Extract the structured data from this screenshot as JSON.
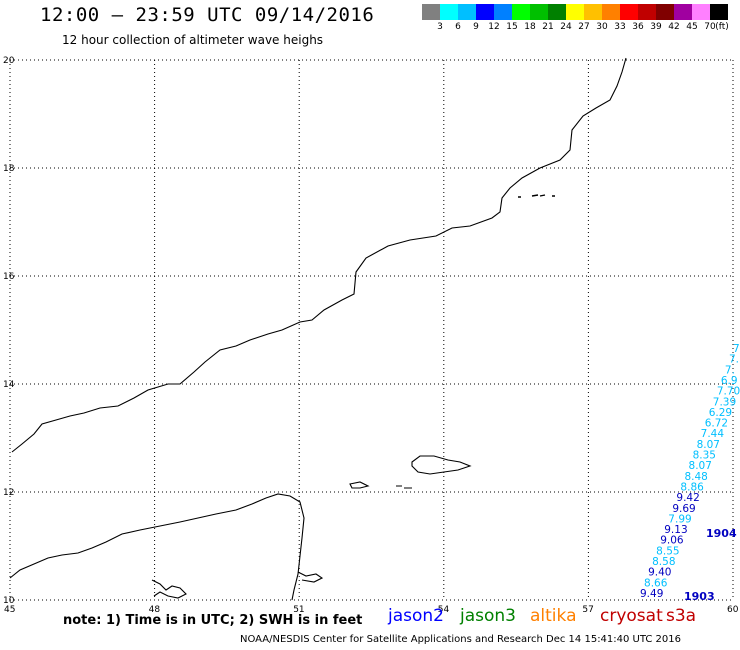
{
  "header": {
    "title": "12:00 – 23:59 UTC 09/14/2016",
    "subtitle": "12 hour collection of altimeter wave heighs"
  },
  "color_scale": {
    "colors": [
      "#808080",
      "#00ffff",
      "#00bfff",
      "#0000ff",
      "#0080ff",
      "#00ff00",
      "#00c000",
      "#008000",
      "#ffff00",
      "#ffc000",
      "#ff8000",
      "#ff0000",
      "#c00000",
      "#800000",
      "#a000a0",
      "#ff80ff",
      "#000000"
    ],
    "labels": [
      "3",
      "6",
      "9",
      "12",
      "15",
      "18",
      "21",
      "24",
      "27",
      "30",
      "33",
      "36",
      "39",
      "42",
      "45",
      "70",
      "(ft)"
    ]
  },
  "map": {
    "lon_range": [
      45,
      60
    ],
    "lat_range": [
      10,
      20
    ],
    "x_ticks": [
      "45",
      "48",
      "51",
      "54",
      "57",
      "60"
    ],
    "y_ticks": [
      "10",
      "12",
      "14",
      "16",
      "18",
      "20"
    ],
    "track_values": [
      "7",
      "7.",
      "7.",
      "6.9",
      "7.70",
      "7.39",
      "6.29",
      "6.72",
      "7.44",
      "8.07",
      "8.35",
      "8.07",
      "8.48",
      "8.86",
      "9.42",
      "9.69",
      "7.99",
      "9.13",
      "9.06",
      "8.55",
      "8.58",
      "9.40",
      "8.66",
      "9.49"
    ],
    "pass_labels": [
      "1904",
      "1903"
    ]
  },
  "note": "note: 1) Time is in UTC; 2) SWH is in feet",
  "satellites": [
    {
      "name": "jason2",
      "color": "#0000ff"
    },
    {
      "name": "jason3",
      "color": "#008000"
    },
    {
      "name": "altika",
      "color": "#ff8000"
    },
    {
      "name": "cryosat",
      "color": "#c00000"
    },
    {
      "name": "s3a",
      "color": "#c00000"
    }
  ],
  "footer": "NOAA/NESDIS Center for Satellite Applications and Research    Dec 14 15:41:40 UTC 2016"
}
